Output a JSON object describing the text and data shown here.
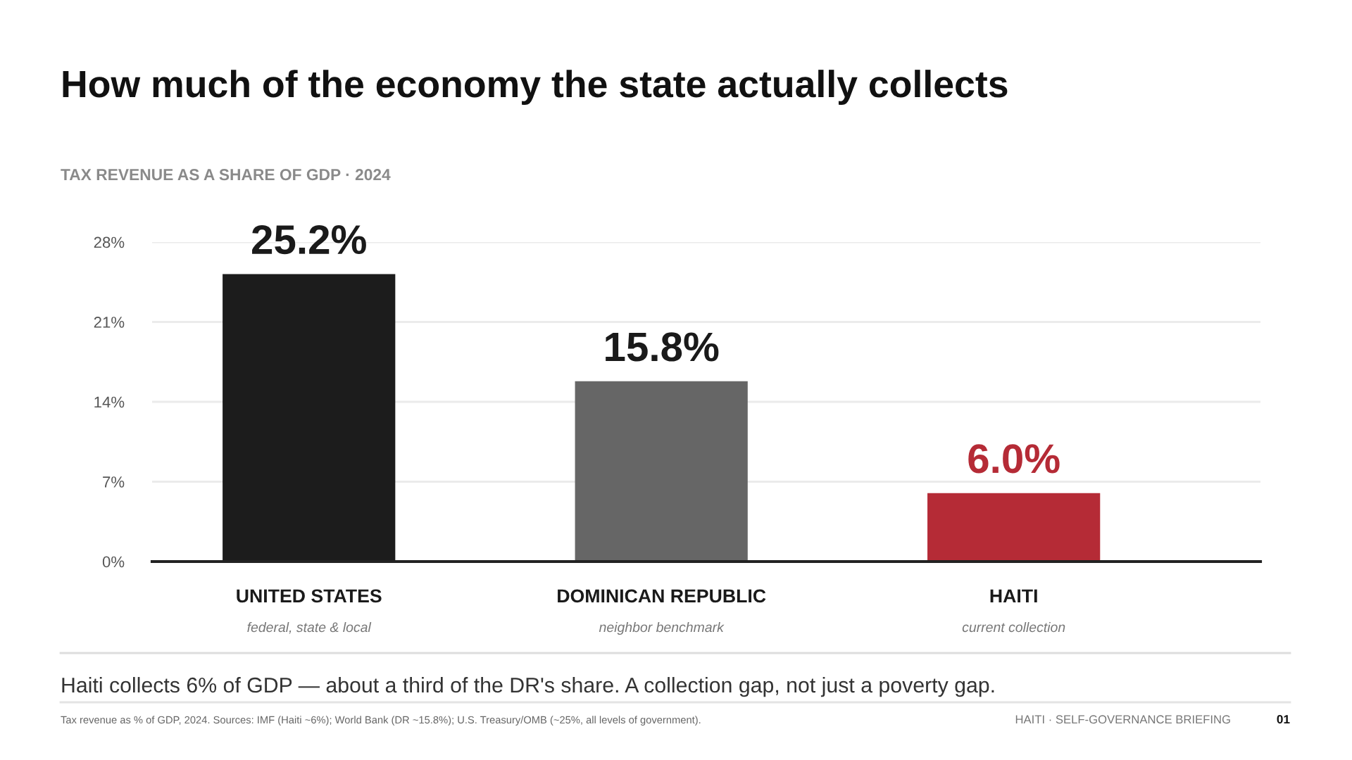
{
  "chart_data": {
    "type": "bar",
    "title": "How much of the economy the state actually collects",
    "subtitle": "TAX REVENUE AS A SHARE OF GDP · 2024",
    "categories": [
      "UNITED STATES\nfederal, state & local",
      "DOMINICAN REPUBLIC\nneighbor benchmark",
      "HAITI\ncurrent collection"
    ],
    "values": [
      25.2,
      15.8,
      6.0
    ],
    "colors": [
      "#1c1c1c",
      "#666666",
      "#b52b36"
    ],
    "value_labels": [
      "25.2%",
      "15.8%",
      "6.0%"
    ],
    "ylim": [
      0,
      28
    ],
    "yticks": [
      {
        "value": 0,
        "label": "0%"
      },
      {
        "value": 7,
        "label": "7%"
      },
      {
        "value": 14,
        "label": "14%"
      },
      {
        "value": 21,
        "label": "21%"
      },
      {
        "value": 28,
        "label": "28%"
      }
    ],
    "grid": "y",
    "annotations": [
      "Haiti collects 6% of GDP — about a third of the DR's share. A collection gap, not just a poverty gap.",
      "Tax revenue as % of GDP, 2024. Sources: IMF (Haiti ~6%); World Bank (DR ~15.8%); U.S. Treasury/OMB (~25%, all levels of government).",
      "HAITI · SELF-GOVERNANCE BRIEFING",
      "01"
    ]
  }
}
